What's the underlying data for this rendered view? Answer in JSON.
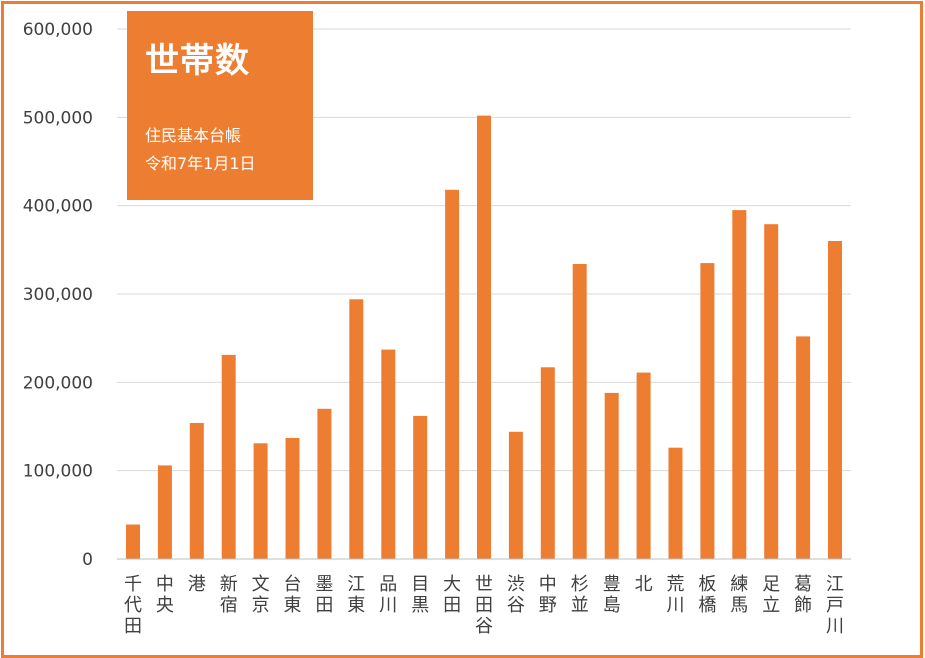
{
  "chart_data": {
    "type": "bar",
    "title": "世帯数",
    "subtitle": [
      "住民基本台帳",
      "令和7年1月1日"
    ],
    "categories": [
      "千代田",
      "中央",
      "港",
      "新宿",
      "文京",
      "台東",
      "墨田",
      "江東",
      "品川",
      "目黒",
      "大田",
      "世田谷",
      "渋谷",
      "中野",
      "杉並",
      "豊島",
      "北",
      "荒川",
      "板橋",
      "練馬",
      "足立",
      "葛飾",
      "江戸川"
    ],
    "values": [
      39000,
      106000,
      154000,
      231000,
      131000,
      137000,
      170000,
      294000,
      237000,
      162000,
      418000,
      502000,
      144000,
      217000,
      334000,
      188000,
      211000,
      126000,
      335000,
      395000,
      379000,
      252000,
      360000
    ],
    "ylim": [
      0,
      600000
    ],
    "yticks": [
      "0",
      "100,000",
      "200,000",
      "300,000",
      "400,000",
      "500,000",
      "600,000"
    ],
    "xlabel": "",
    "ylabel": "",
    "grid": true,
    "legend": "none",
    "bar_color": "#ed7d31"
  }
}
